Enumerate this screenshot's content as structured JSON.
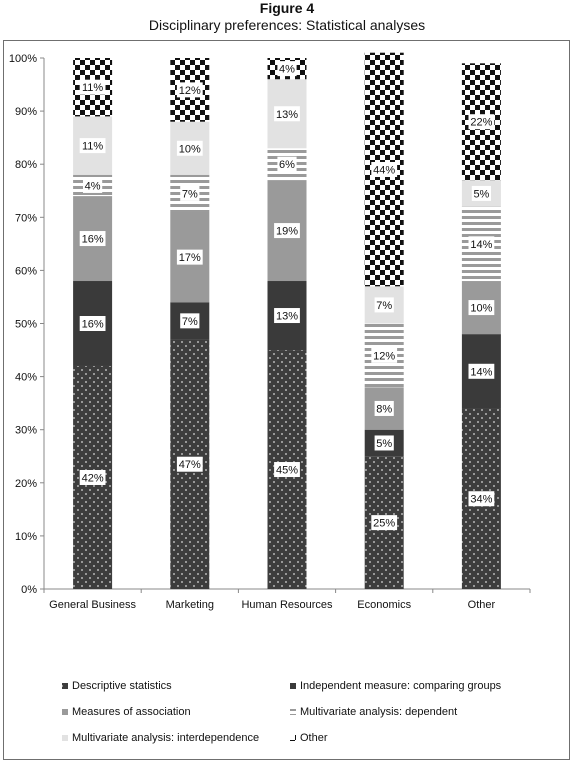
{
  "figure": {
    "number": "Figure 4",
    "title": "Disciplinary preferences: Statistical analyses"
  },
  "chart_data": {
    "type": "bar",
    "stacked": true,
    "percent_stacked": true,
    "categories": [
      "General Business",
      "Marketing",
      "Human Resources",
      "Economics",
      "Other"
    ],
    "y_ticks": [
      "0%",
      "10%",
      "20%",
      "30%",
      "40%",
      "50%",
      "60%",
      "70%",
      "80%",
      "90%",
      "100%"
    ],
    "ylim": [
      0,
      100
    ],
    "grid": false,
    "legend_position": "bottom",
    "series": [
      {
        "name": "Descriptive statistics",
        "pattern": "dots",
        "values": [
          42,
          47,
          45,
          25,
          34
        ],
        "labels": [
          "42%",
          "47%",
          "45%",
          "25%",
          "34%"
        ]
      },
      {
        "name": "Independent measure: comparing groups",
        "pattern": "solid-dark",
        "values": [
          16,
          7,
          13,
          5,
          14
        ],
        "labels": [
          "16%",
          "7%",
          "13%",
          "5%",
          "14%"
        ]
      },
      {
        "name": "Measures of association",
        "pattern": "solid-mid",
        "values": [
          16,
          17,
          19,
          8,
          10
        ],
        "labels": [
          "16%",
          "17%",
          "19%",
          "8%",
          "10%"
        ]
      },
      {
        "name": "Multivariate analysis: dependent",
        "pattern": "stripes",
        "values": [
          4,
          7,
          6,
          12,
          14
        ],
        "labels": [
          "4%",
          "7%",
          "6%",
          "12%",
          "14%"
        ]
      },
      {
        "name": "Multivariate analysis: interdependence",
        "pattern": "solid-light",
        "values": [
          11,
          10,
          13,
          7,
          5
        ],
        "labels": [
          "11%",
          "10%",
          "13%",
          "7%",
          "5%"
        ]
      },
      {
        "name": "Other",
        "pattern": "checker",
        "values": [
          11,
          12,
          4,
          44,
          22
        ],
        "labels": [
          "11%",
          "12%",
          "4%",
          "44%",
          "22%"
        ]
      }
    ],
    "colors": {
      "dots_bg": "#3d3d3d",
      "dots_fg": "#d8d8d8",
      "solid_dark": "#3a3a3a",
      "solid_mid": "#9a9a9a",
      "stripes_bg": "#ffffff",
      "stripes_fg": "#9a9a9a",
      "solid_light": "#e2e2e2",
      "checker_dark": "#111111",
      "checker_light": "#ffffff",
      "axis": "#888888"
    }
  }
}
